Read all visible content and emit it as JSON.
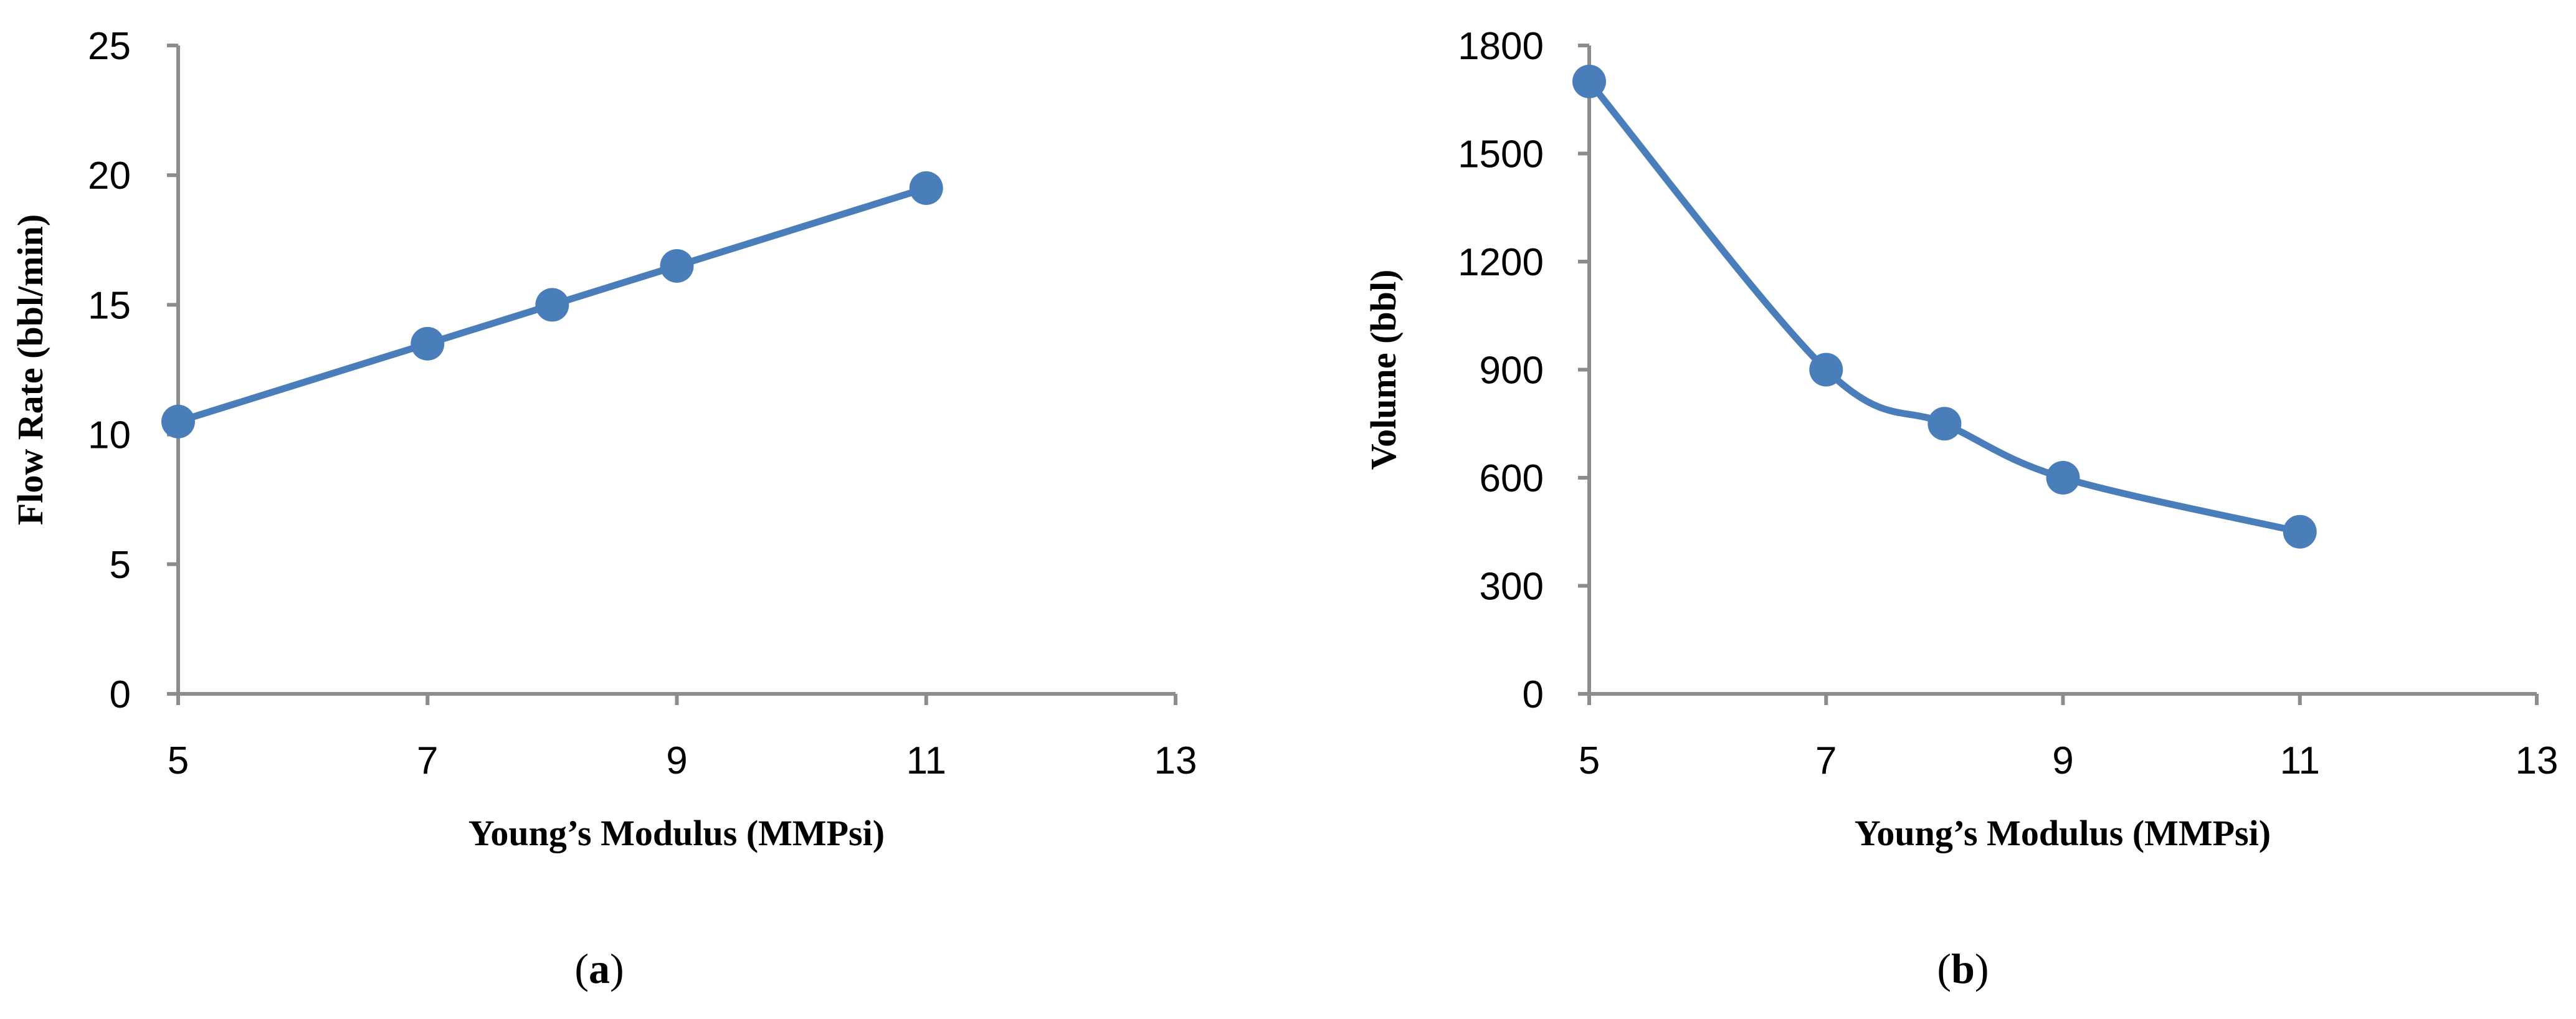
{
  "chart_data": [
    {
      "type": "line",
      "panel_label": "a",
      "xlabel": "Young’s Modulus (MMPsi)",
      "ylabel": "Flow Rate (bbl/min)",
      "xlim": [
        5,
        13
      ],
      "ylim": [
        0,
        25
      ],
      "xticks": [
        5,
        7,
        9,
        11,
        13
      ],
      "yticks": [
        0,
        5,
        10,
        15,
        20,
        25
      ],
      "grid": false,
      "smooth": false,
      "color": "#4a7ebb",
      "series": [
        {
          "x": [
            5,
            7,
            8,
            9,
            11
          ],
          "y": [
            10.5,
            13.5,
            15,
            16.5,
            19.5
          ]
        }
      ]
    },
    {
      "type": "line",
      "panel_label": "b",
      "xlabel": "Young’s Modulus (MMPsi)",
      "ylabel": "Volume (bbl)",
      "xlim": [
        5,
        13
      ],
      "ylim": [
        0,
        1800
      ],
      "xticks": [
        5,
        7,
        9,
        11,
        13
      ],
      "yticks": [
        0,
        300,
        600,
        900,
        1200,
        1500,
        1800
      ],
      "grid": false,
      "smooth": true,
      "color": "#4a7ebb",
      "series": [
        {
          "x": [
            5,
            7,
            8,
            9,
            11
          ],
          "y": [
            1700,
            900,
            750,
            600,
            450
          ]
        }
      ]
    }
  ]
}
